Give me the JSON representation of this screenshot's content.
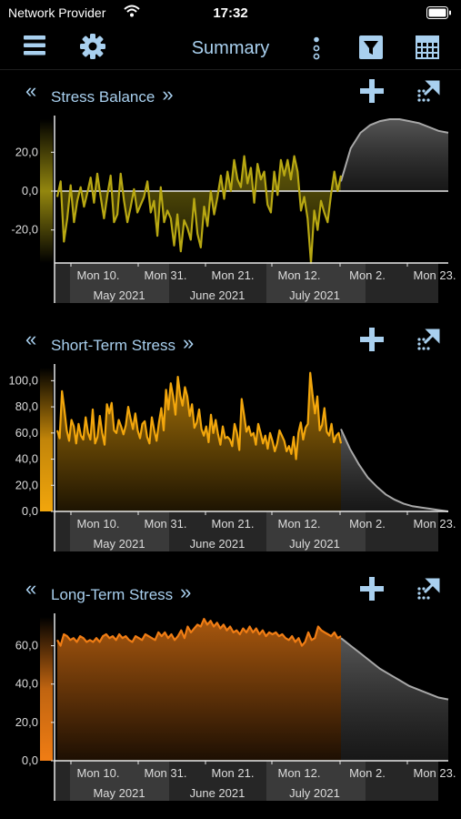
{
  "status_bar": {
    "provider": "Network Provider",
    "time": "17:32"
  },
  "nav": {
    "title": "Summary"
  },
  "colors": {
    "accent": "#a9d0ef",
    "stress_balance": "#b8a812",
    "short_term": "#f2a60c",
    "long_term": "#f07d14",
    "forecast": "#a8a8a8"
  },
  "axis_labels": {
    "weeks": [
      "Mon 10.",
      "Mon 31.",
      "Mon 21.",
      "Mon 12.",
      "Mon 2.",
      "Mon 23."
    ],
    "months": [
      "May 2021",
      "June 2021",
      "July 2021"
    ]
  },
  "panels": [
    {
      "title": "Stress Balance",
      "ticks": [
        "20,0",
        "0,0",
        "-20,0"
      ]
    },
    {
      "title": "Short-Term Stress",
      "ticks": [
        "100,0",
        "80,0",
        "60,0",
        "40,0",
        "20,0",
        "0,0"
      ]
    },
    {
      "title": "Long-Term Stress",
      "ticks": [
        "60,0",
        "40,0",
        "20,0",
        "0,0"
      ]
    }
  ],
  "chart_data": [
    {
      "type": "line",
      "title": "Stress Balance",
      "ylim": [
        -37,
        37
      ],
      "yticks": [
        20,
        0,
        -20
      ],
      "color": "#b8a812",
      "series": [
        {
          "values": [
            -3,
            5,
            -26,
            -14,
            3,
            -16,
            -5,
            2,
            -8,
            -1,
            7,
            -6,
            9,
            -3,
            -14,
            -2,
            8,
            -16,
            -12,
            9,
            -5,
            -16,
            -8,
            1,
            -11,
            -7,
            -3,
            5,
            -11,
            -5,
            -23,
            2,
            -16,
            -10,
            -14,
            -28,
            -12,
            -31,
            -15,
            -19,
            -25,
            -4,
            -22,
            -29,
            -8,
            -18,
            0,
            -12,
            -3,
            8,
            -4,
            10,
            0,
            16,
            6,
            2,
            18,
            4,
            12,
            -6,
            14,
            6,
            10,
            -7,
            -11,
            10,
            -2,
            16,
            8,
            16,
            6,
            18,
            10,
            -10,
            -3,
            -14,
            -37,
            -10,
            -20,
            -5,
            -11,
            -16,
            -2,
            10,
            0,
            8
          ]
        }
      ],
      "forecast": [
        5,
        22,
        30,
        34,
        36,
        37,
        37,
        36,
        35,
        33,
        31,
        30
      ],
      "grid": false
    },
    {
      "type": "line",
      "title": "Short-Term Stress",
      "ylim": [
        0,
        110
      ],
      "yticks": [
        100,
        80,
        60,
        40,
        20,
        0
      ],
      "color": "#f2a60c",
      "series": [
        {
          "values": [
            62,
            56,
            92,
            78,
            62,
            54,
            70,
            65,
            52,
            67,
            58,
            55,
            72,
            60,
            55,
            78,
            52,
            57,
            73,
            60,
            51,
            82,
            75,
            83,
            62,
            60,
            70,
            65,
            59,
            66,
            80,
            71,
            63,
            75,
            62,
            56,
            67,
            69,
            57,
            52,
            72,
            62,
            54,
            68,
            79,
            62,
            93,
            78,
            98,
            88,
            74,
            103,
            89,
            81,
            95,
            88,
            73,
            82,
            64,
            68,
            78,
            63,
            58,
            65,
            53,
            74,
            60,
            70,
            59,
            51,
            65,
            56,
            57,
            55,
            50,
            67,
            60,
            47,
            86,
            74,
            61,
            65,
            58,
            60,
            51,
            67,
            60,
            52,
            58,
            48,
            60,
            54,
            46,
            52,
            62,
            58,
            54,
            46,
            50,
            44,
            57,
            40,
            60,
            68,
            55,
            64,
            67,
            106,
            89,
            75,
            88,
            62,
            66,
            79,
            61,
            58,
            67,
            53,
            58,
            60,
            52
          ]
        }
      ],
      "forecast": [
        63,
        48,
        36,
        26,
        19,
        13,
        9,
        6,
        4,
        3,
        2,
        1,
        0
      ],
      "grid": false
    },
    {
      "type": "line",
      "title": "Long-Term Stress",
      "ylim": [
        0,
        75
      ],
      "yticks": [
        60,
        40,
        20,
        0
      ],
      "color": "#f07d14",
      "series": [
        {
          "values": [
            63,
            60,
            66,
            65,
            63,
            64,
            62,
            65,
            64,
            62,
            63,
            62,
            64,
            62,
            65,
            66,
            64,
            65,
            63,
            66,
            64,
            65,
            63,
            62,
            65,
            64,
            63,
            66,
            65,
            64,
            63,
            67,
            65,
            67,
            64,
            66,
            63,
            65,
            68,
            64,
            70,
            67,
            69,
            71,
            70,
            74,
            71,
            73,
            70,
            72,
            69,
            71,
            68,
            70,
            67,
            68,
            66,
            69,
            67,
            70,
            67,
            69,
            66,
            68,
            65,
            67,
            66,
            67,
            65,
            66,
            64,
            63,
            65,
            62,
            64,
            60,
            62,
            67,
            63,
            64,
            70,
            68,
            67,
            66,
            65,
            67,
            64,
            65
          ]
        }
      ],
      "forecast": [
        64,
        60,
        56,
        52,
        48,
        45,
        42,
        39,
        37,
        35,
        33,
        32
      ],
      "grid": false
    }
  ]
}
